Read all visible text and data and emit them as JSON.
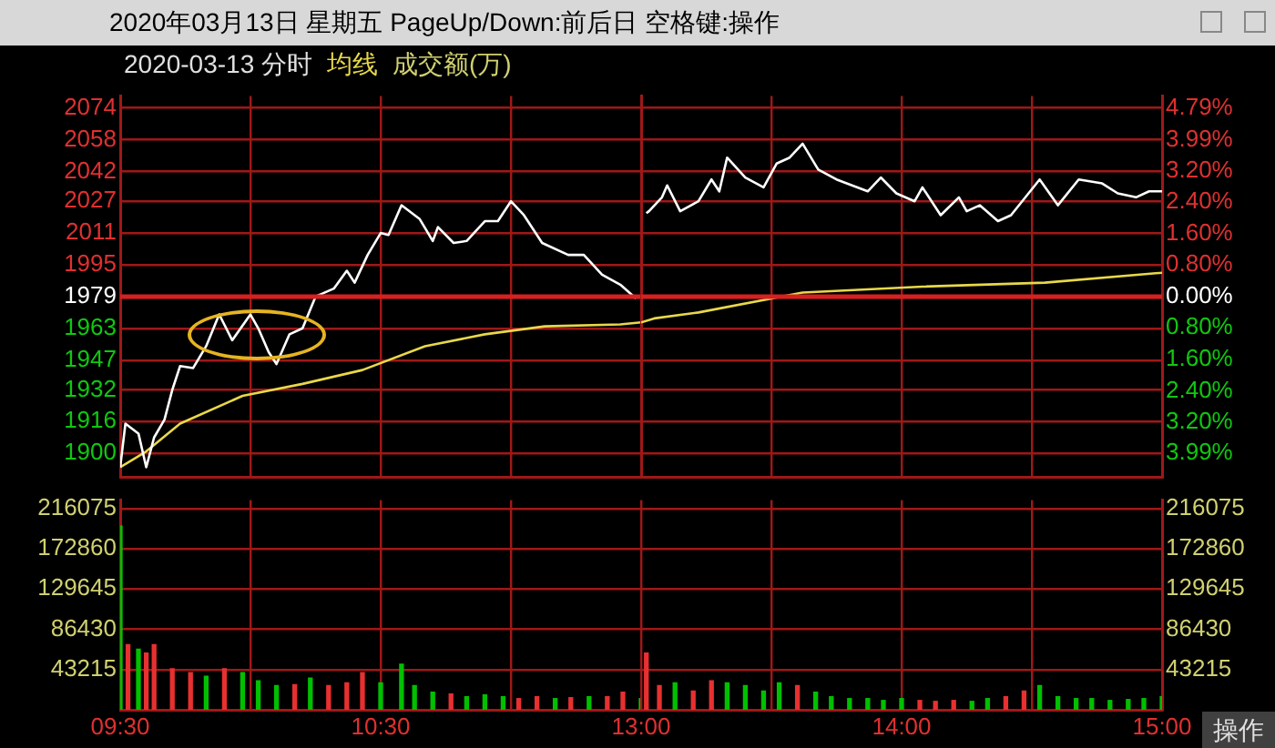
{
  "chart_data": [
    {
      "type": "line",
      "title": "2020年03月13日 星期五 PageUp/Down:前后日 空格键:操作",
      "subtitle": "2020-03-13 分时",
      "series": [
        {
          "color": "#ffffff",
          "x": [
            9.5,
            9.52,
            9.53,
            9.57,
            9.6,
            9.63,
            9.67,
            9.7,
            9.73,
            9.78,
            9.83,
            9.88,
            9.93,
            10,
            10.03,
            10.07,
            10.1,
            10.15,
            10.2,
            10.25,
            10.32,
            10.37,
            10.4,
            10.45,
            10.5,
            10.53,
            10.58,
            10.65,
            10.7,
            10.72,
            10.78,
            10.83,
            10.9,
            10.95,
            11,
            11.05,
            11.12,
            11.22,
            11.28,
            11.35,
            11.42,
            11.48
          ],
          "values": [
            1893,
            1915,
            1914,
            1910,
            1893,
            1908,
            1917,
            1932,
            1944,
            1943,
            1954,
            1970,
            1957,
            1970,
            1963,
            1951,
            1945,
            1960,
            1963,
            1979,
            1983,
            1992,
            1986,
            2000,
            2011,
            2010,
            2025,
            2018,
            2007,
            2014,
            2006,
            2007,
            2017,
            2017,
            2027,
            2020,
            2006,
            2000,
            2000,
            1990,
            1985,
            1978
          ]
        },
        {
          "name": "均线",
          "color": "#e8d84a",
          "x": [
            9.5,
            9.6,
            9.73,
            9.97,
            10.2,
            10.43,
            10.67,
            10.9,
            11.13,
            11.42,
            11.5
          ],
          "values": [
            1893,
            1901,
            1915,
            1929,
            1935,
            1942,
            1954,
            1960,
            1964,
            1965,
            1966
          ]
        }
      ],
      "xlim": [
        9.5,
        11.5
      ],
      "xticks": [
        {
          "value": 9.5,
          "label": null
        },
        {
          "value": 10,
          "label": null
        },
        {
          "value": 10.5,
          "label": null
        },
        {
          "value": 11,
          "label": null
        }
      ],
      "ylim": [
        1888,
        2080
      ],
      "yticks": [
        1900,
        1916,
        1932,
        1947,
        1963,
        1979,
        1995,
        2011,
        2027,
        2042,
        2058,
        2074
      ],
      "ref_lines": [
        {
          "axis": "y",
          "value": 1979,
          "color": "#d82020"
        }
      ],
      "grid": true,
      "legend": "top left",
      "tick_labels": "y",
      "annotations": [
        "成交额(万)"
      ]
    },
    {
      "type": "line",
      "series": [
        {
          "color": "#ffffff",
          "x": [
            13.02,
            13.03,
            13.08,
            13.1,
            13.15,
            13.22,
            13.27,
            13.3,
            13.33,
            13.4,
            13.47,
            13.52,
            13.57,
            13.62,
            13.68,
            13.75,
            13.87,
            13.92,
            13.98,
            14.05,
            14.08,
            14.15,
            14.22,
            14.25,
            14.3,
            14.37,
            14.42,
            14.53,
            14.6,
            14.68,
            14.77,
            14.83,
            14.9,
            14.95,
            15
          ],
          "values": [
            2021,
            2022,
            2029,
            2035,
            2022,
            2027,
            2038,
            2032,
            2049,
            2039,
            2034,
            2046,
            2049,
            2056,
            2043,
            2038,
            2032,
            2039,
            2031,
            2027,
            2034,
            2020,
            2029,
            2022,
            2025,
            2017,
            2020,
            2038,
            2025,
            2038,
            2036,
            2031,
            2029,
            2032,
            2032
          ]
        },
        {
          "color": "#e8d84a",
          "x": [
            13,
            13.05,
            13.22,
            13.62,
            14.08,
            14.55,
            15
          ],
          "values": [
            1966,
            1968,
            1971,
            1981,
            1984,
            1986,
            1991
          ]
        }
      ],
      "xlim": [
        13,
        15
      ],
      "xticks": [
        {
          "value": 13,
          "label": null
        },
        {
          "value": 13.5,
          "label": null
        },
        {
          "value": 14,
          "label": null
        },
        {
          "value": 14.5,
          "label": null
        },
        {
          "value": 15,
          "label": null
        }
      ],
      "ylim": [
        1888,
        2080
      ],
      "yticks": [
        1900,
        1916,
        1932,
        1947,
        1963,
        1979,
        1995,
        2011,
        2027,
        2042,
        2058,
        2074
      ],
      "y2lim": [
        -4.6,
        5.1
      ],
      "y2ticks": [
        {
          "value": -3.99,
          "label": "3.99%"
        },
        {
          "value": -3.2,
          "label": "3.20%"
        },
        {
          "value": -2.4,
          "label": "2.40%"
        },
        {
          "value": -1.6,
          "label": "1.60%"
        },
        {
          "value": -0.8,
          "label": "0.80%"
        },
        {
          "value": 0,
          "label": "0.00%"
        },
        {
          "value": 0.8,
          "label": "0.80%"
        },
        {
          "value": 1.6,
          "label": "1.60%"
        },
        {
          "value": 2.4,
          "label": "2.40%"
        },
        {
          "value": 3.2,
          "label": "3.20%"
        },
        {
          "value": 3.99,
          "label": "3.99%"
        },
        {
          "value": 4.79,
          "label": "4.79%"
        }
      ],
      "ref_lines": [
        {
          "axis": "y",
          "value": 1979,
          "color": "#d82020"
        }
      ],
      "grid": true,
      "tick_labels": false
    },
    {
      "type": "bar",
      "x": [
        9.5,
        9.53,
        9.57,
        9.6,
        9.63,
        9.7,
        9.77,
        9.83,
        9.9,
        9.97,
        10.03,
        10.1,
        10.17,
        10.23,
        10.3,
        10.37,
        10.43,
        10.5,
        10.58,
        10.63,
        10.7,
        10.77,
        10.83,
        10.9,
        10.97,
        11.03,
        11.1,
        11.17,
        11.23,
        11.3,
        11.37,
        11.43,
        11.5
      ],
      "values": [
        197000,
        70000,
        65000,
        61000,
        70000,
        44000,
        40000,
        36000,
        44000,
        40000,
        31000,
        26000,
        27000,
        34000,
        26000,
        29000,
        40000,
        29000,
        49000,
        26000,
        19000,
        17000,
        14000,
        16000,
        14000,
        12000,
        14000,
        12000,
        13000,
        14000,
        14000,
        19000,
        12000
      ],
      "colors": [
        "#00c000",
        "#e83030",
        "#00c000",
        "#e83030",
        "#e83030",
        "#e83030",
        "#e83030",
        "#00c000",
        "#e83030",
        "#00c000",
        "#00c000",
        "#00c000",
        "#e83030",
        "#00c000",
        "#e83030",
        "#e83030",
        "#e83030",
        "#00c000",
        "#00c000",
        "#00c000",
        "#00c000",
        "#e83030",
        "#00c000",
        "#00c000",
        "#00c000",
        "#e83030",
        "#e83030",
        "#00c000",
        "#e83030",
        "#00c000",
        "#e83030",
        "#e83030",
        "#00c000"
      ],
      "xlim": [
        9.5,
        11.5
      ],
      "xticks": [
        {
          "value": 9.5,
          "label": "09:30"
        },
        {
          "value": 10,
          "label": null
        },
        {
          "value": 10.5,
          "label": "10:30"
        },
        {
          "value": 11,
          "label": null
        }
      ],
      "ylim": [
        0,
        225000
      ],
      "yticks": [
        43215,
        86430,
        129645,
        172860,
        216075
      ],
      "grid": true
    },
    {
      "type": "bar",
      "series": [
        {
          "axis": "y2",
          "x": [
            13.02,
            13.07,
            13.13,
            13.2,
            13.27,
            13.33,
            13.4,
            13.47,
            13.53,
            13.6,
            13.67,
            13.73,
            13.8,
            13.87,
            13.93,
            14,
            14.07,
            14.13,
            14.2,
            14.27,
            14.33,
            14.4,
            14.47,
            14.53,
            14.6,
            14.67,
            14.73,
            14.8,
            14.87,
            14.93,
            15
          ],
          "values": [
            61000,
            26000,
            29000,
            20000,
            31000,
            29000,
            26000,
            20000,
            29000,
            26000,
            19000,
            14000,
            12000,
            12000,
            10000,
            12000,
            10000,
            9000,
            10000,
            9000,
            12000,
            14000,
            20000,
            26000,
            14000,
            12000,
            12000,
            10000,
            11000,
            12000,
            14000
          ],
          "colors": [
            "#e83030",
            "#e83030",
            "#00c000",
            "#e83030",
            "#e83030",
            "#00c000",
            "#00c000",
            "#00c000",
            "#00c000",
            "#e83030",
            "#00c000",
            "#00c000",
            "#00c000",
            "#00c000",
            "#00c000",
            "#00c000",
            "#e83030",
            "#e83030",
            "#e83030",
            "#00c000",
            "#00c000",
            "#e83030",
            "#e83030",
            "#00c000",
            "#00c000",
            "#00c000",
            "#00c000",
            "#00c000",
            "#00c000",
            "#00c000",
            "#00c000"
          ]
        }
      ],
      "xlim": [
        13,
        15
      ],
      "xticks": [
        {
          "value": 13,
          "label": "13:00"
        },
        {
          "value": 13.5,
          "label": null
        },
        {
          "value": 14,
          "label": "14:00"
        },
        {
          "value": 14.5,
          "label": null
        },
        {
          "value": 15,
          "label": "15:00"
        }
      ],
      "y2lim": [
        0,
        225000
      ],
      "y2ticks": [
        43215,
        86430,
        129645,
        172860,
        216075
      ],
      "grid": true,
      "annotations": [
        "操作"
      ]
    }
  ]
}
